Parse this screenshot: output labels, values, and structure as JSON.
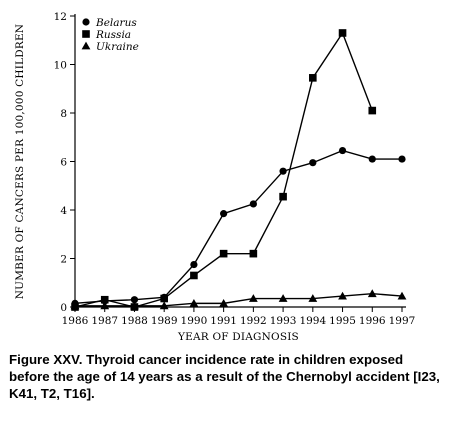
{
  "chart_data": {
    "type": "line",
    "xlabel": "YEAR OF DIAGNOSIS",
    "ylabel": "NUMBER OF CANCERS PER 100,000 CHILDREN",
    "x": [
      1986,
      1987,
      1988,
      1989,
      1990,
      1991,
      1992,
      1993,
      1994,
      1995,
      1996,
      1997
    ],
    "x_tick_labels": [
      "1986",
      "1987",
      "1988",
      "1989",
      "1990",
      "1991",
      "1992",
      "1993",
      "1994",
      "1995",
      "1996",
      "1997"
    ],
    "y_ticks": [
      0,
      2,
      4,
      6,
      8,
      10,
      12
    ],
    "y_tick_labels": [
      "0",
      "2",
      "4",
      "6",
      "8",
      "10",
      "12"
    ],
    "xlim": [
      1986,
      1997
    ],
    "ylim": [
      0,
      12
    ],
    "grid": false,
    "legend_position": "top-left",
    "series": [
      {
        "name": "Belarus",
        "marker": "circle",
        "x": [
          1986,
          1987,
          1988,
          1989,
          1990,
          1991,
          1992,
          1993,
          1994,
          1995,
          1996,
          1997
        ],
        "values": [
          0.15,
          0.25,
          0.3,
          0.4,
          1.75,
          3.85,
          4.25,
          5.6,
          5.95,
          6.45,
          6.1,
          6.1
        ]
      },
      {
        "name": "Russia",
        "marker": "square",
        "x": [
          1986,
          1987,
          1988,
          1989,
          1990,
          1991,
          1992,
          1993,
          1994,
          1995,
          1996
        ],
        "values": [
          0.0,
          0.3,
          0.0,
          0.35,
          1.3,
          2.2,
          2.2,
          4.55,
          9.45,
          11.3,
          8.1
        ]
      },
      {
        "name": "Ukraine",
        "marker": "triangle",
        "x": [
          1986,
          1987,
          1988,
          1989,
          1990,
          1991,
          1992,
          1993,
          1994,
          1995,
          1996,
          1997
        ],
        "values": [
          0.05,
          0.05,
          0.05,
          0.05,
          0.15,
          0.15,
          0.35,
          0.35,
          0.35,
          0.45,
          0.55,
          0.45
        ]
      }
    ]
  },
  "caption": "Figure XXV.  Thyroid cancer incidence rate in children exposed before the age of 14 years as a result of the Chernobyl accident [I23, K41, T2, T16]."
}
